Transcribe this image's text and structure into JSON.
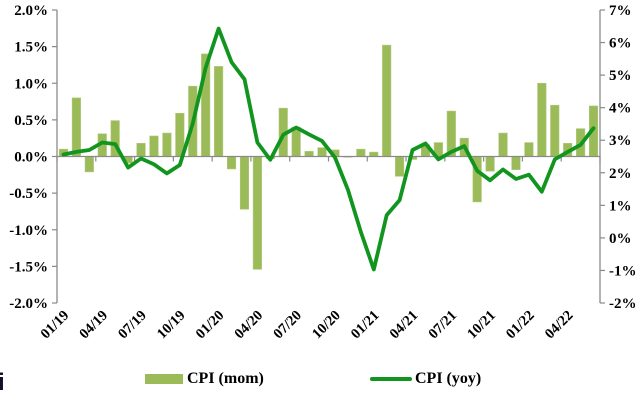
{
  "figure": {
    "corner_text": "i"
  },
  "legend": {
    "mom_label": "CPI (mom)",
    "yoy_label": "CPI (yoy)"
  },
  "chart_data": {
    "type": "combo-bar-line",
    "x": [
      "01/19",
      "02/19",
      "03/19",
      "04/19",
      "05/19",
      "06/19",
      "07/19",
      "08/19",
      "09/19",
      "10/19",
      "11/19",
      "12/19",
      "01/20",
      "02/20",
      "03/20",
      "04/20",
      "05/20",
      "06/20",
      "07/20",
      "08/20",
      "09/20",
      "10/20",
      "11/20",
      "12/20",
      "01/21",
      "02/21",
      "03/21",
      "04/21",
      "05/21",
      "06/21",
      "07/21",
      "08/21",
      "09/21",
      "10/21",
      "11/21",
      "12/21",
      "01/22",
      "02/22",
      "03/22",
      "04/22",
      "05/22",
      "06/22"
    ],
    "x_tick_labels": [
      "01/19",
      "04/19",
      "07/19",
      "10/19",
      "01/20",
      "04/20",
      "07/20",
      "10/20",
      "01/21",
      "04/21",
      "07/21",
      "10/21",
      "01/22",
      "04/22"
    ],
    "x_tick_interval": 3,
    "series": [
      {
        "name": "CPI (mom)",
        "type": "bar",
        "axis": "left",
        "color": "#9BBB59",
        "border_color": "#AFC87A",
        "values": [
          0.1,
          0.8,
          -0.21,
          0.31,
          0.49,
          -0.09,
          0.18,
          0.28,
          0.32,
          0.59,
          0.96,
          1.4,
          1.23,
          -0.17,
          -0.72,
          -1.54,
          -0.03,
          0.66,
          0.4,
          0.07,
          0.12,
          0.09,
          -0.01,
          0.1,
          0.06,
          1.52,
          -0.27,
          -0.04,
          0.16,
          0.19,
          0.62,
          0.25,
          -0.62,
          -0.2,
          0.32,
          -0.18,
          0.19,
          1.0,
          0.7,
          0.18,
          0.38,
          0.69
        ]
      },
      {
        "name": "CPI (yoy)",
        "type": "line",
        "axis": "right",
        "color": "#11951F",
        "values": [
          2.56,
          2.64,
          2.7,
          2.93,
          2.88,
          2.16,
          2.44,
          2.26,
          1.98,
          2.24,
          3.52,
          5.23,
          6.43,
          5.4,
          4.87,
          2.93,
          2.4,
          3.17,
          3.39,
          3.18,
          2.98,
          2.47,
          1.48,
          0.19,
          -0.97,
          0.7,
          1.16,
          2.7,
          2.9,
          2.41,
          2.64,
          2.82,
          2.06,
          1.77,
          2.1,
          1.81,
          1.94,
          1.42,
          2.41,
          2.64,
          2.86,
          3.37
        ]
      }
    ],
    "left_axis": {
      "min": -2,
      "max": 2,
      "step": 0.5,
      "tick_labels": [
        "2.0%",
        "1.5%",
        "1.0%",
        "0.5%",
        "0.0%",
        "-0.5%",
        "-1.0%",
        "-1.5%",
        "-2.0%"
      ]
    },
    "right_axis": {
      "min": -2,
      "max": 7,
      "step": 1,
      "tick_labels": [
        "7%",
        "6%",
        "5%",
        "4%",
        "3%",
        "2%",
        "1%",
        "0%",
        "-1%",
        "-2%"
      ]
    },
    "grid": "none",
    "legend_position": "bottom",
    "axis_color": "#8A8A8A",
    "text_color": "#000000"
  }
}
